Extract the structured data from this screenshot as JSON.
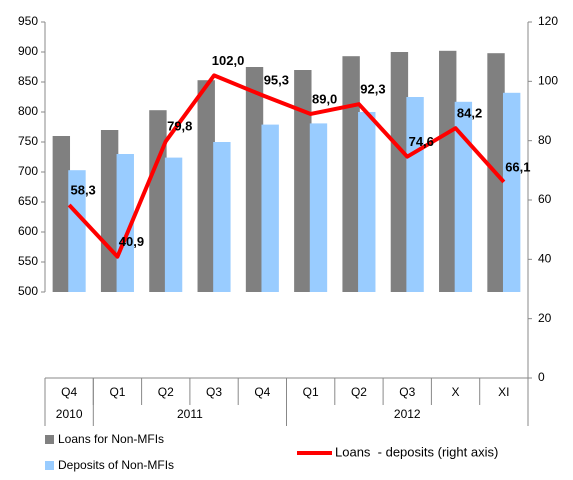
{
  "chart_data": {
    "type": "bar-line",
    "categories": [
      "Q4",
      "Q1",
      "Q2",
      "Q3",
      "Q4",
      "Q1",
      "Q2",
      "Q3",
      "X",
      "XI"
    ],
    "groups": [
      {
        "label": "2010",
        "count": 1
      },
      {
        "label": "2011",
        "count": 4
      },
      {
        "label": "2012",
        "count": 5
      }
    ],
    "series": [
      {
        "name": "Loans for Non-MFIs",
        "type": "bar",
        "color": "#808080",
        "values": [
          760,
          770,
          803,
          853,
          875,
          870,
          893,
          900,
          902,
          898
        ]
      },
      {
        "name": "Deposits of Non-MFIs",
        "type": "bar",
        "color": "#99ccff",
        "values": [
          703,
          730,
          724,
          750,
          779,
          781,
          800,
          825,
          817,
          832
        ]
      },
      {
        "name": "Loans  - deposits (right axis)",
        "type": "line",
        "axis": "y2",
        "color": "#ff0000",
        "values": [
          58.3,
          40.9,
          79.8,
          102.0,
          95.3,
          89.0,
          92.3,
          74.6,
          84.2,
          66.1
        ],
        "value_labels": [
          "58,3",
          "40,9",
          "79,8",
          "102,0",
          "95,3",
          "89,0",
          "92,3",
          "74,6",
          "84,2",
          "66,1"
        ]
      }
    ],
    "ylim": [
      500,
      950
    ],
    "yticks": [
      500,
      550,
      600,
      650,
      700,
      750,
      800,
      850,
      900,
      950
    ],
    "y2lim": [
      0,
      120
    ],
    "y2ticks": [
      0,
      20,
      40,
      60,
      80,
      100,
      120
    ],
    "grid": false
  }
}
